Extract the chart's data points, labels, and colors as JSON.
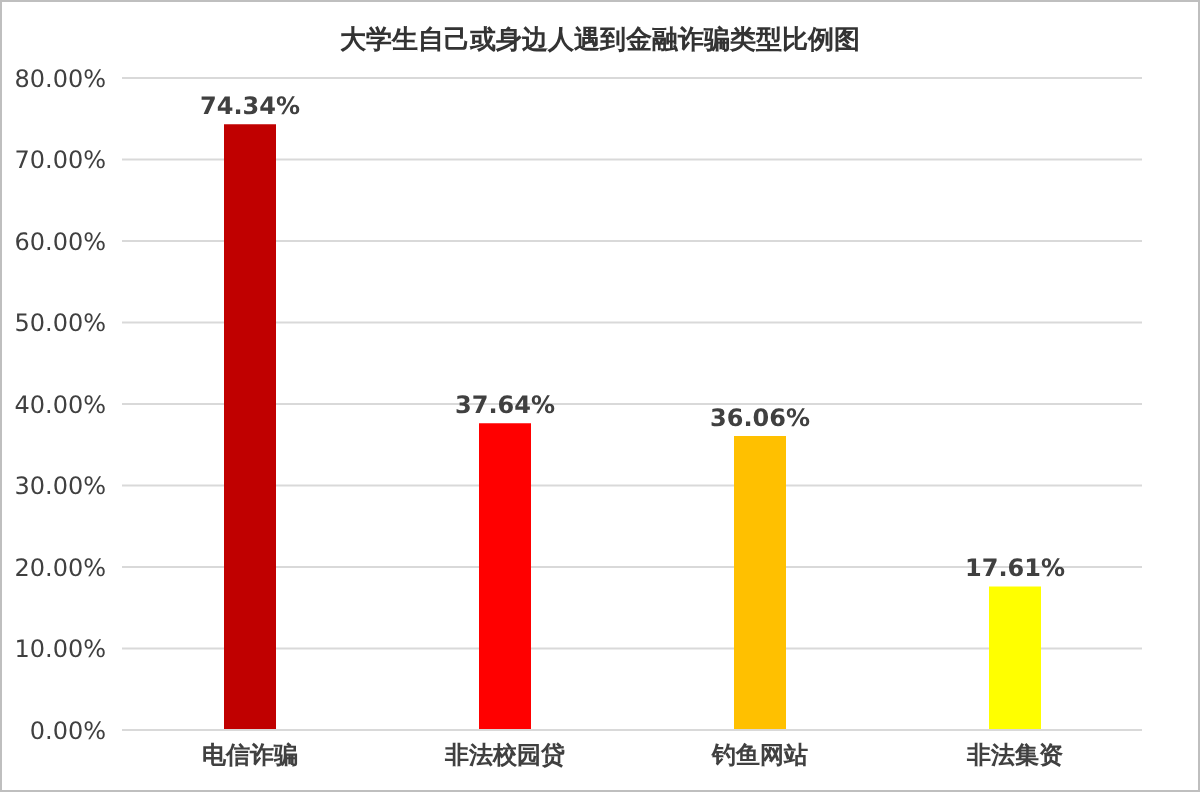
{
  "chart_data": {
    "type": "bar",
    "title": "大学生自己或身边人遇到金融诈骗类型比例图",
    "categories": [
      "电信诈骗",
      "非法校园贷",
      "钓鱼网站",
      "非法集资"
    ],
    "values": [
      74.34,
      37.64,
      36.06,
      17.61
    ],
    "colors": [
      "#c00000",
      "#ff0000",
      "#ffc000",
      "#ffff00"
    ],
    "value_labels": [
      "74.34%",
      "37.64%",
      "36.06%",
      "17.61%"
    ],
    "ylim": [
      0,
      80
    ],
    "yticks": [
      {
        "value": 0,
        "label": "0.00%"
      },
      {
        "value": 10,
        "label": "10.00%"
      },
      {
        "value": 20,
        "label": "20.00%"
      },
      {
        "value": 30,
        "label": "30.00%"
      },
      {
        "value": 40,
        "label": "40.00%"
      },
      {
        "value": 50,
        "label": "50.00%"
      },
      {
        "value": 60,
        "label": "60.00%"
      },
      {
        "value": 70,
        "label": "70.00%"
      },
      {
        "value": 80,
        "label": "80.00%"
      }
    ],
    "grid": "y"
  }
}
